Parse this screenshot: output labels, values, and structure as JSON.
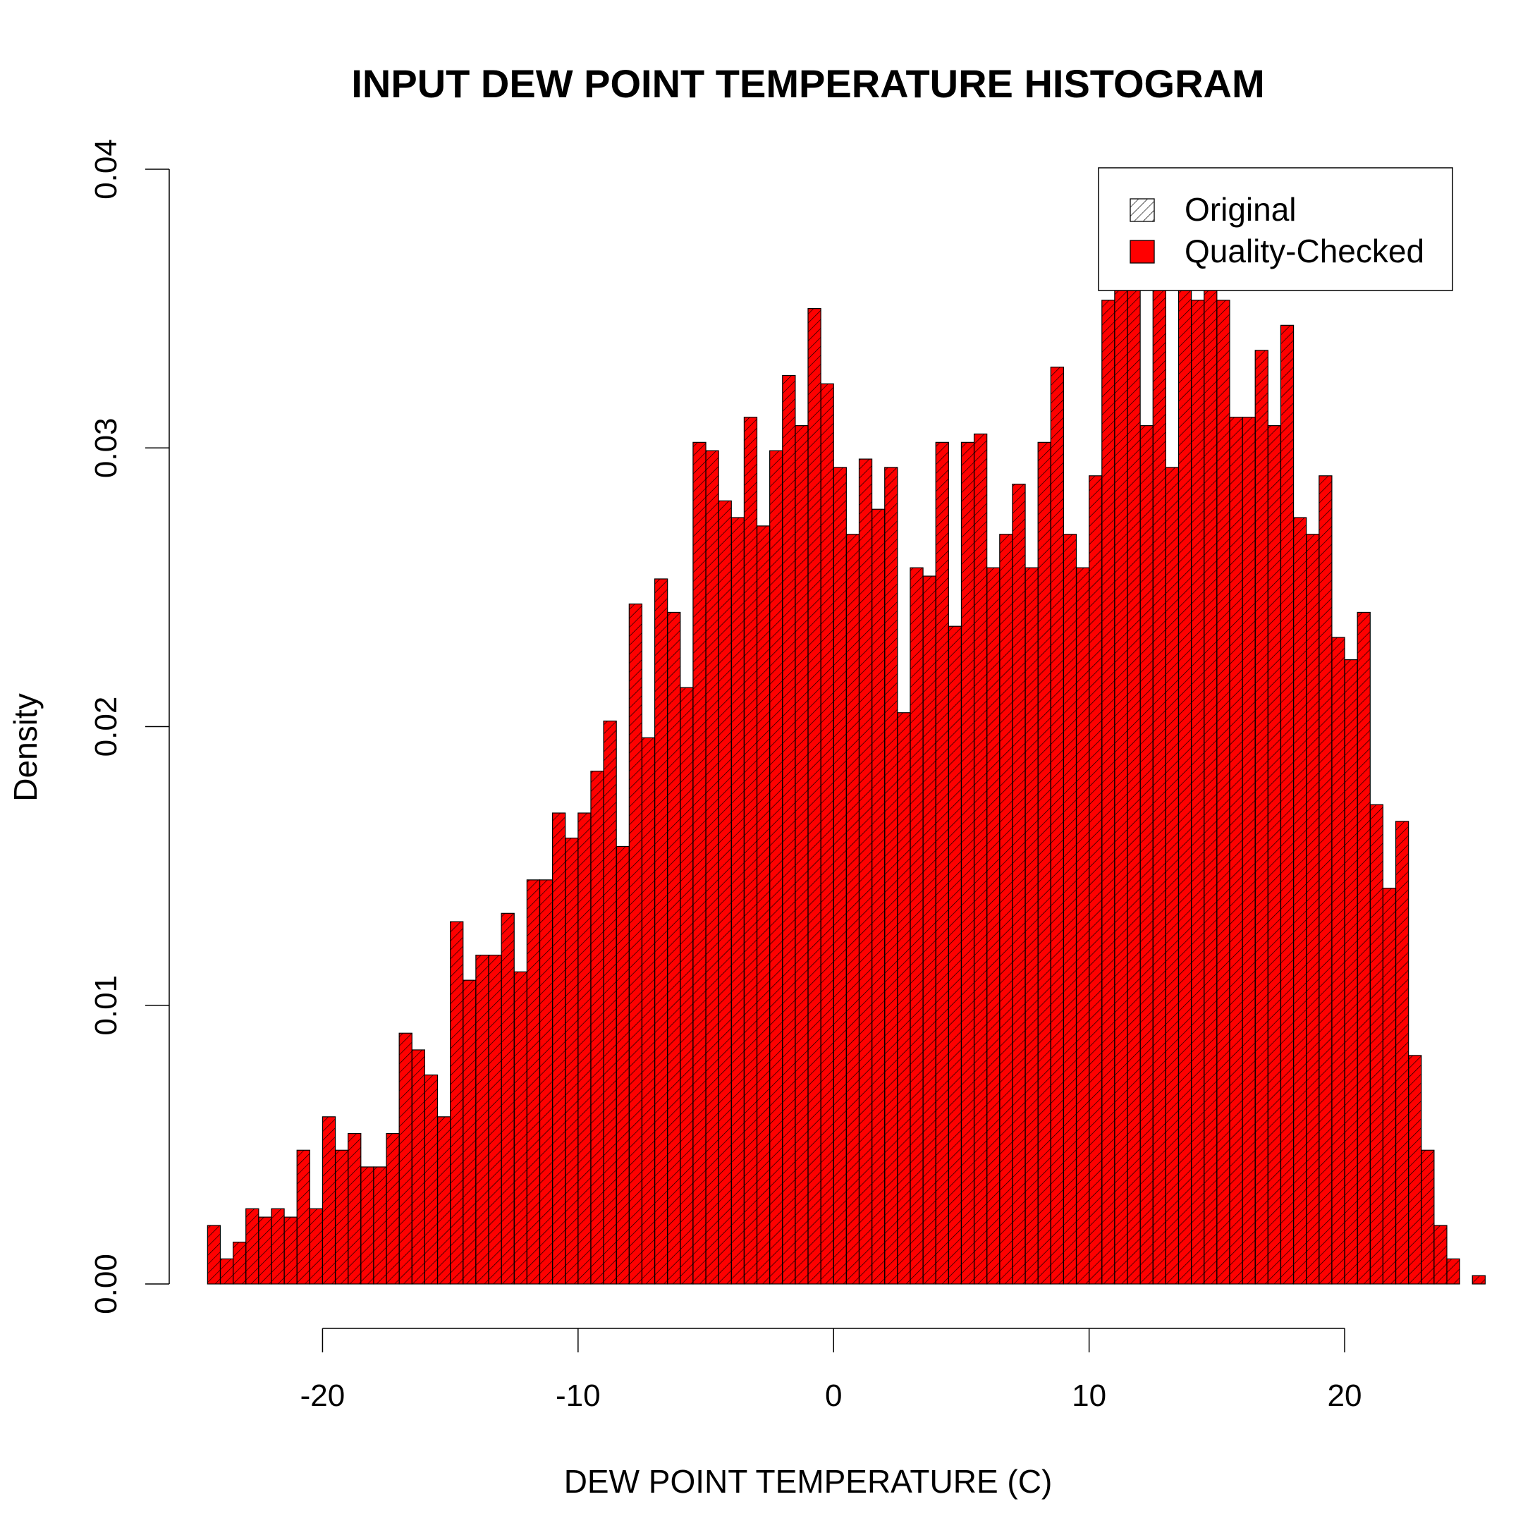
{
  "chart_data": {
    "type": "bar",
    "title": "INPUT DEW POINT TEMPERATURE HISTOGRAM",
    "xlabel": "DEW POINT TEMPERATURE (C)",
    "ylabel": "Density",
    "xlim": [
      -26,
      24
    ],
    "ylim": [
      0,
      0.04
    ],
    "x_ticks": [
      -20,
      -10,
      0,
      10,
      20
    ],
    "x_tick_labels": [
      "-20",
      "-10",
      "0",
      "10",
      "20"
    ],
    "y_ticks": [
      0,
      0.01,
      0.02,
      0.03,
      0.04
    ],
    "y_tick_labels": [
      "0.00",
      "0.01",
      "0.02",
      "0.03",
      "0.04"
    ],
    "legend_position": "top-right",
    "bin_start": -24.5,
    "bin_width": 0.5,
    "series": [
      {
        "name": "Original",
        "style": "hatched",
        "color": "#000000",
        "values": [
          0.0021,
          0.0009,
          0.0015,
          0.0027,
          0.0024,
          0.0027,
          0.0024,
          0.0048,
          0.0027,
          0.006,
          0.0048,
          0.0054,
          0.0042,
          0.0042,
          0.0054,
          0.009,
          0.0084,
          0.0075,
          0.006,
          0.013,
          0.0109,
          0.0118,
          0.0118,
          0.0133,
          0.0112,
          0.0145,
          0.0145,
          0.0169,
          0.016,
          0.0169,
          0.0184,
          0.0202,
          0.0157,
          0.0244,
          0.0196,
          0.0253,
          0.0241,
          0.0214,
          0.0302,
          0.0299,
          0.0281,
          0.0275,
          0.0311,
          0.0272,
          0.0299,
          0.0326,
          0.0308,
          0.035,
          0.0323,
          0.0293,
          0.0269,
          0.0296,
          0.0278,
          0.0293,
          0.0205,
          0.0257,
          0.0254,
          0.0302,
          0.0236,
          0.0302,
          0.0305,
          0.0257,
          0.0269,
          0.0287,
          0.0257,
          0.0302,
          0.0329,
          0.0269,
          0.0257,
          0.029,
          0.0353,
          0.0365,
          0.0386,
          0.0308,
          0.0368,
          0.0293,
          0.0383,
          0.0353,
          0.0362,
          0.0353,
          0.0311,
          0.0311,
          0.0335,
          0.0308,
          0.0344,
          0.0275,
          0.0269,
          0.029,
          0.0232,
          0.0224,
          0.0241,
          0.0172,
          0.0142,
          0.0166,
          0.0082,
          0.0048,
          0.0021,
          0.0009,
          0.0,
          0.0003
        ]
      },
      {
        "name": "Quality-Checked",
        "style": "filled",
        "color": "#ff0000",
        "values": [
          0.0021,
          0.0009,
          0.0015,
          0.0027,
          0.0024,
          0.0027,
          0.0024,
          0.0048,
          0.0027,
          0.006,
          0.0048,
          0.0054,
          0.0042,
          0.0042,
          0.0054,
          0.009,
          0.0084,
          0.0075,
          0.006,
          0.013,
          0.0109,
          0.0118,
          0.0118,
          0.0133,
          0.0112,
          0.0145,
          0.0145,
          0.0169,
          0.016,
          0.0169,
          0.0184,
          0.0202,
          0.0157,
          0.0244,
          0.0196,
          0.0253,
          0.0241,
          0.0214,
          0.0302,
          0.0299,
          0.0281,
          0.0275,
          0.0311,
          0.0272,
          0.0299,
          0.0326,
          0.0308,
          0.035,
          0.0323,
          0.0293,
          0.0269,
          0.0296,
          0.0278,
          0.0293,
          0.0205,
          0.0257,
          0.0254,
          0.0302,
          0.0236,
          0.0302,
          0.0305,
          0.0257,
          0.0269,
          0.0287,
          0.0257,
          0.0302,
          0.0329,
          0.0269,
          0.0257,
          0.029,
          0.0353,
          0.0365,
          0.0386,
          0.0308,
          0.0368,
          0.0293,
          0.0383,
          0.0353,
          0.0362,
          0.0353,
          0.0311,
          0.0311,
          0.0335,
          0.0308,
          0.0344,
          0.0275,
          0.0269,
          0.029,
          0.0232,
          0.0224,
          0.0241,
          0.0172,
          0.0142,
          0.0166,
          0.0082,
          0.0048,
          0.0021,
          0.0009,
          0.0,
          0.0003
        ]
      }
    ]
  }
}
